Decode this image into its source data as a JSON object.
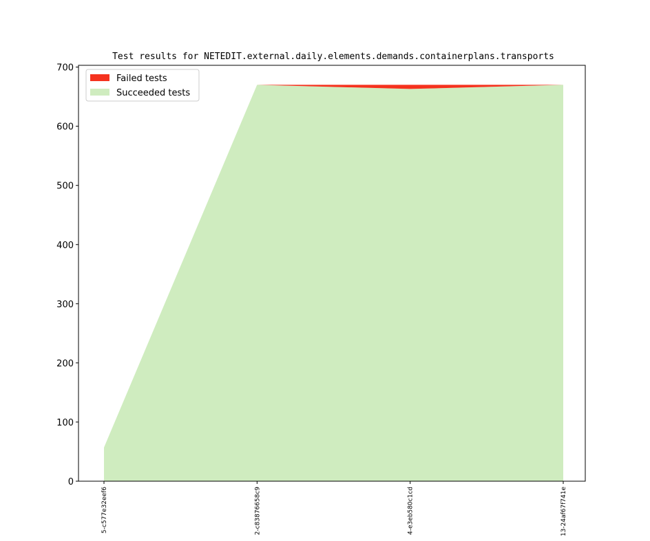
{
  "chart_data": {
    "type": "stacked_area",
    "title": "Test results for NETEDIT.external.daily.elements.demands.containerplans.transports",
    "categories": [
      "5-c577e32eef6",
      "2-c83876658c9",
      "4-e3eb580c1cd",
      "13-24af67f741e"
    ],
    "series": [
      {
        "name": "Failed tests",
        "color": "#f5321e",
        "values": [
          0,
          0,
          7,
          0
        ]
      },
      {
        "name": "Succeeded tests",
        "color": "#cfecbf",
        "values": [
          57,
          670,
          663,
          670
        ]
      }
    ],
    "ylim": [
      0,
      703
    ],
    "yticks": [
      0,
      100,
      200,
      300,
      400,
      500,
      600,
      700
    ],
    "legend": "upper left"
  }
}
